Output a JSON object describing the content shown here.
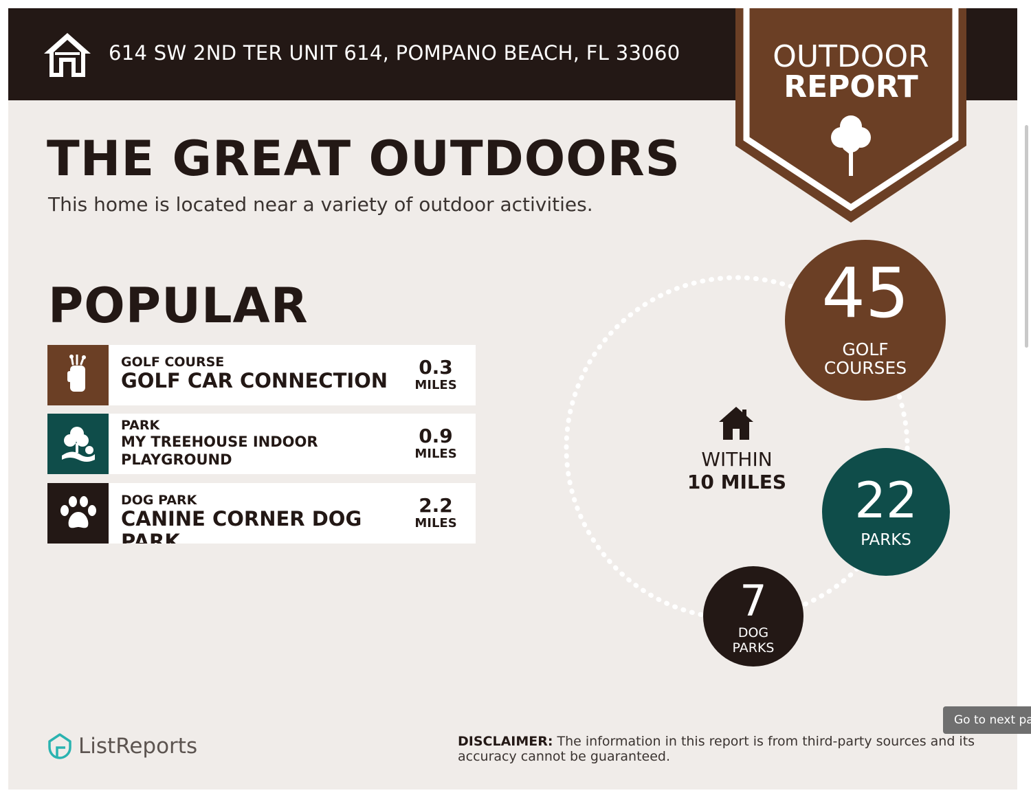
{
  "header": {
    "address": "614 SW 2ND TER UNIT 614, POMPANO BEACH, FL 33060",
    "badge_line1": "OUTDOOR",
    "badge_line2": "REPORT"
  },
  "intro": {
    "title": "THE GREAT OUTDOORS",
    "subtitle": "This home is located near a variety of outdoor activities."
  },
  "popular": {
    "title": "POPULAR",
    "items": [
      {
        "category": "GOLF COURSE",
        "name": "GOLF CAR CONNECTION",
        "distance": "0.3",
        "unit": "MILES",
        "icon": "golf-bag-icon",
        "color": "#6b3f25"
      },
      {
        "category": "PARK",
        "name": "MY TREEHOUSE INDOOR PLAYGROUND",
        "distance": "0.9",
        "unit": "MILES",
        "icon": "park-icon",
        "color": "#0f4d4a"
      },
      {
        "category": "DOG PARK",
        "name": "CANINE CORNER DOG PARK",
        "distance": "2.2",
        "unit": "MILES",
        "icon": "paw-icon",
        "color": "#231815"
      }
    ]
  },
  "summary": {
    "within_line1": "WITHIN",
    "within_line2": "10 MILES",
    "golf": {
      "count": "45",
      "label_line1": "GOLF",
      "label_line2": "COURSES",
      "color": "#6b3f25"
    },
    "parks": {
      "count": "22",
      "label": "PARKS",
      "color": "#0f4d4a"
    },
    "dog_parks": {
      "count": "7",
      "label_line1": "DOG",
      "label_line2": "PARKS",
      "color": "#231815"
    }
  },
  "footer": {
    "brand": "ListReports",
    "disclaimer_label": "DISCLAIMER:",
    "disclaimer_text": " The information in this report is from third-party sources and its accuracy cannot be guaranteed."
  },
  "overlay": {
    "next_page": "Go to next pag"
  }
}
